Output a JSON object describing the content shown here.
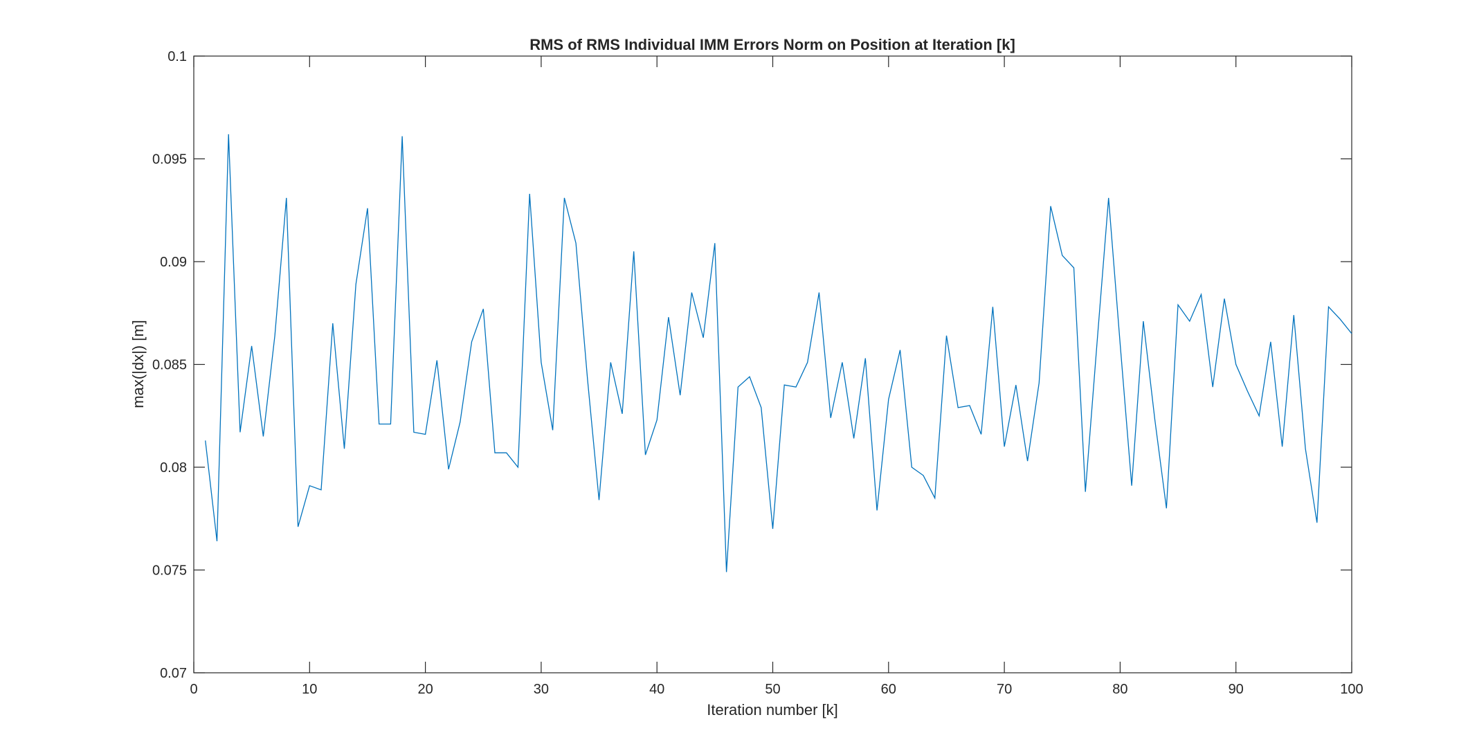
{
  "chart_data": {
    "type": "line",
    "title": "RMS of RMS Individual IMM Errors Norm on Position at Iteration [k]",
    "xlabel": "Iteration number [k]",
    "ylabel": "max(|dx|) [m]",
    "xlim": [
      0,
      100
    ],
    "ylim": [
      0.07,
      0.1
    ],
    "xticks": [
      0,
      10,
      20,
      30,
      40,
      50,
      60,
      70,
      80,
      90,
      100
    ],
    "xtick_labels": [
      "0",
      "10",
      "20",
      "30",
      "40",
      "50",
      "60",
      "70",
      "80",
      "90",
      "100"
    ],
    "yticks": [
      0.07,
      0.075,
      0.08,
      0.085,
      0.09,
      0.095,
      0.1
    ],
    "ytick_labels": [
      "0.07",
      "0.075",
      "0.08",
      "0.085",
      "0.09",
      "0.095",
      "0.1"
    ],
    "grid": false,
    "line_color": "#0072bd",
    "series": [
      {
        "x": [
          1,
          2,
          3,
          4,
          5,
          6,
          7,
          8,
          9,
          10,
          11,
          12,
          13,
          14,
          15,
          16,
          17,
          18,
          19,
          20,
          21,
          22,
          23,
          24,
          25,
          26,
          27,
          28,
          29,
          30,
          31,
          32,
          33,
          34,
          35,
          36,
          37,
          38,
          39,
          40,
          41,
          42,
          43,
          44,
          45,
          46,
          47,
          48,
          49,
          50,
          51,
          52,
          53,
          54,
          55,
          56,
          57,
          58,
          59,
          60,
          61,
          62,
          63,
          64,
          65,
          66,
          67,
          68,
          69,
          70,
          71,
          72,
          73,
          74,
          75,
          76,
          77,
          78,
          79,
          80,
          81,
          82,
          83,
          84,
          85,
          86,
          87,
          88,
          89,
          90,
          91,
          92,
          93,
          94,
          95,
          96,
          97,
          98,
          99,
          100
        ],
        "values": [
          0.0813,
          0.0764,
          0.0962,
          0.0817,
          0.0859,
          0.0815,
          0.0864,
          0.0931,
          0.0771,
          0.0791,
          0.0789,
          0.087,
          0.0809,
          0.0889,
          0.0926,
          0.0821,
          0.0821,
          0.0961,
          0.0817,
          0.0816,
          0.0852,
          0.0799,
          0.0822,
          0.0861,
          0.0877,
          0.0807,
          0.0807,
          0.08,
          0.0933,
          0.0851,
          0.0818,
          0.0931,
          0.0909,
          0.0843,
          0.0784,
          0.0851,
          0.0826,
          0.0905,
          0.0806,
          0.0823,
          0.0873,
          0.0835,
          0.0885,
          0.0863,
          0.0909,
          0.0749,
          0.0839,
          0.0844,
          0.0829,
          0.077,
          0.084,
          0.0839,
          0.0851,
          0.0885,
          0.0824,
          0.0851,
          0.0814,
          0.0853,
          0.0779,
          0.0833,
          0.0857,
          0.08,
          0.0796,
          0.0785,
          0.0864,
          0.0829,
          0.083,
          0.0816,
          0.0878,
          0.081,
          0.084,
          0.0803,
          0.0841,
          0.0927,
          0.0903,
          0.0897,
          0.0788,
          0.086,
          0.0931,
          0.086,
          0.0791,
          0.0871,
          0.0823,
          0.078,
          0.0879,
          0.0871,
          0.0884,
          0.0839,
          0.0882,
          0.085,
          0.0837,
          0.0825,
          0.0861,
          0.081,
          0.0874,
          0.0809,
          0.0773,
          0.0878,
          0.0872,
          0.0865
        ]
      }
    ]
  }
}
